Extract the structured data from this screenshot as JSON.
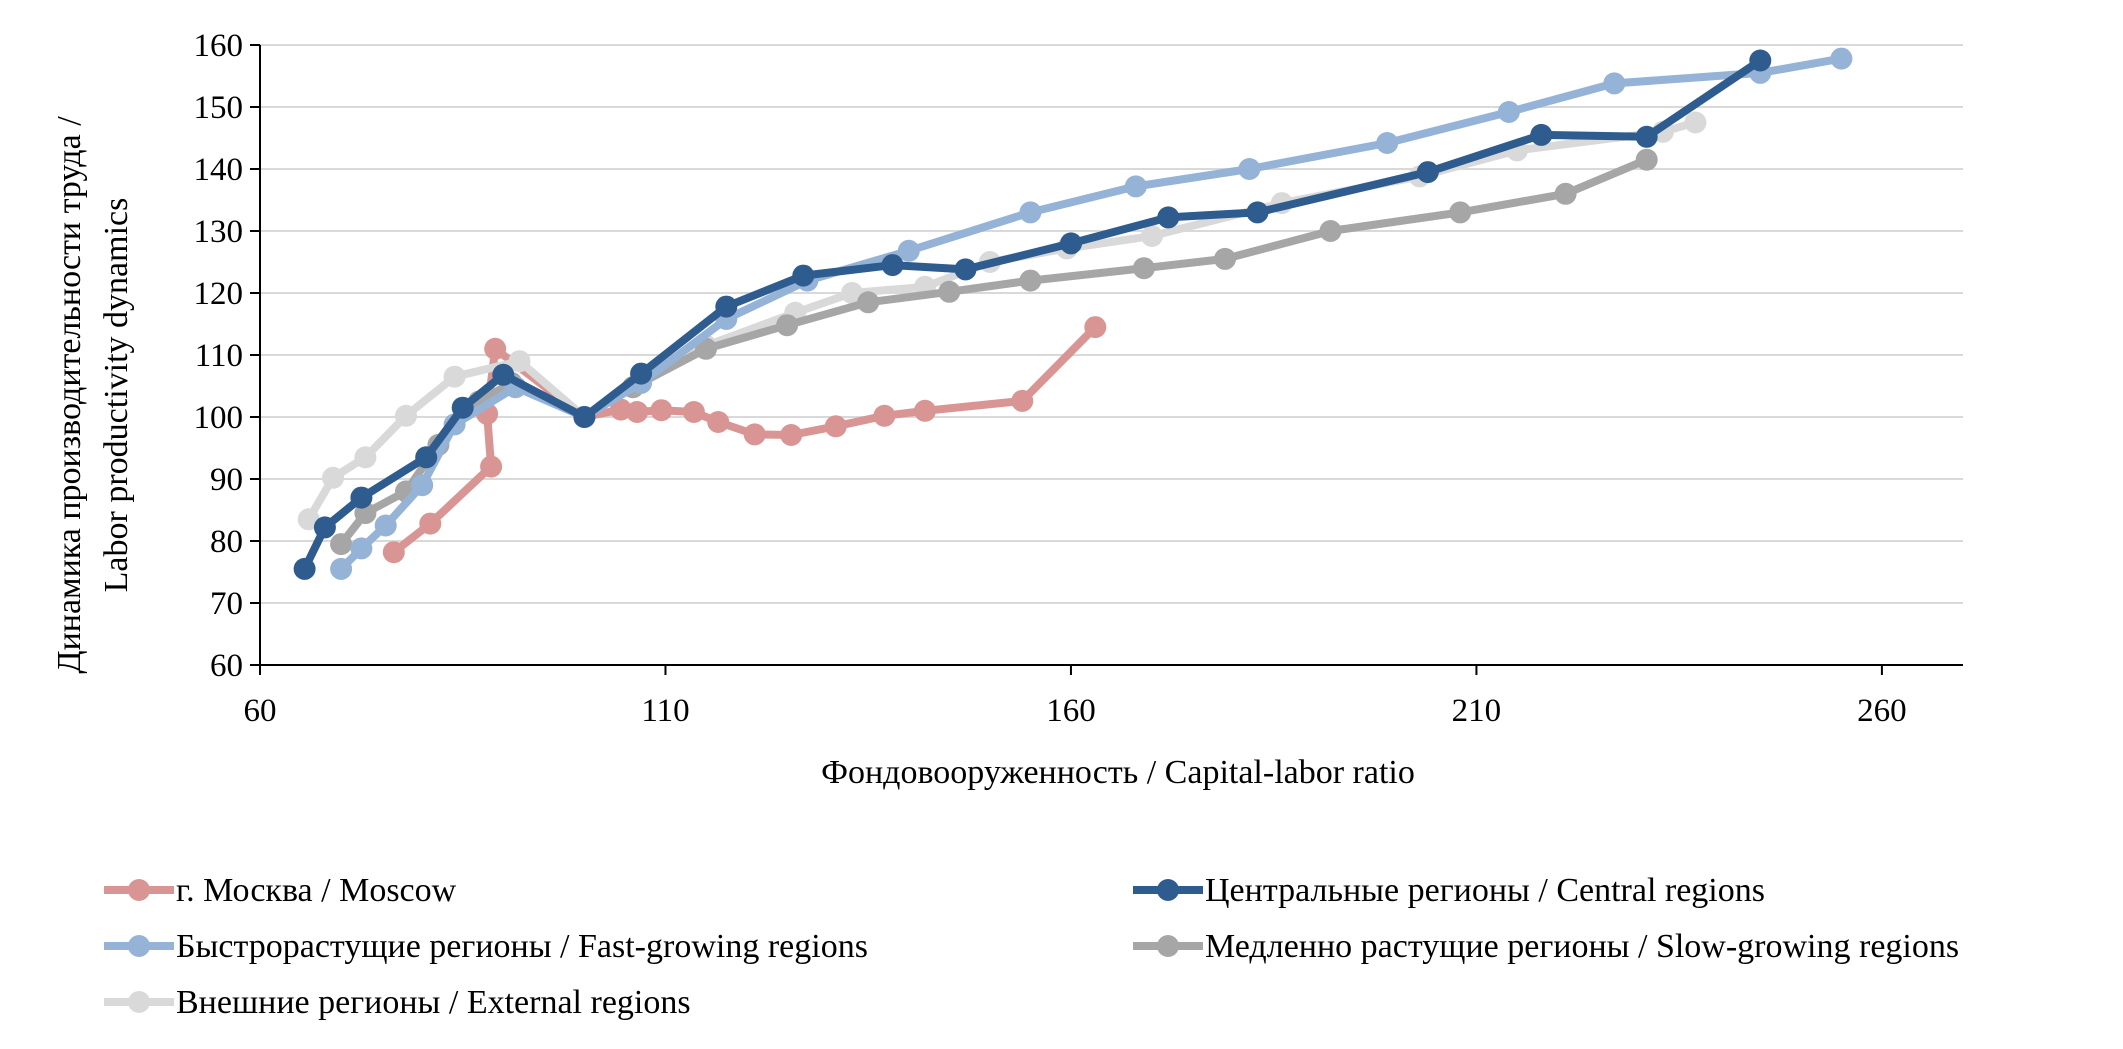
{
  "chart_data": {
    "type": "line",
    "title": "",
    "xlabel": "Фондовооруженность / Capital-labor ratio",
    "ylabel_line1": "Динамика производительности труда /",
    "ylabel_line2": "Labor productivity dynamics",
    "xlim": [
      60,
      270
    ],
    "ylim": [
      60,
      160
    ],
    "xticks": [
      60,
      110,
      160,
      210,
      260
    ],
    "yticks": [
      60,
      70,
      80,
      90,
      100,
      110,
      120,
      130,
      140,
      150,
      160
    ],
    "grid": "horizontal",
    "legend_position": "bottom",
    "series": [
      {
        "name": "г. Москва / Moscow",
        "color": "#D99594",
        "points": [
          [
            76.5,
            78.2
          ],
          [
            81,
            82.8
          ],
          [
            88.5,
            92
          ],
          [
            88,
            100.5
          ],
          [
            89,
            111
          ],
          [
            100,
            100
          ],
          [
            104.5,
            101.2
          ],
          [
            106.5,
            100.8
          ],
          [
            109.5,
            101.1
          ],
          [
            113.5,
            100.8
          ],
          [
            116.5,
            99.2
          ],
          [
            121,
            97.2
          ],
          [
            125.5,
            97.1
          ],
          [
            131,
            98.5
          ],
          [
            137,
            100.2
          ],
          [
            142,
            101
          ],
          [
            154,
            102.6
          ],
          [
            163,
            114.5
          ]
        ]
      },
      {
        "name": "Центральные регионы / Central regions",
        "color": "#2F5C8F",
        "points": [
          [
            65.5,
            75.5
          ],
          [
            68,
            82.2
          ],
          [
            72.5,
            87
          ],
          [
            80.5,
            93.5
          ],
          [
            85,
            101.5
          ],
          [
            90,
            106.8
          ],
          [
            100,
            100
          ],
          [
            107,
            107
          ],
          [
            117.5,
            117.8
          ],
          [
            127,
            122.8
          ],
          [
            138,
            124.5
          ],
          [
            147,
            123.8
          ],
          [
            160,
            128
          ],
          [
            172,
            132.2
          ],
          [
            183,
            133
          ],
          [
            204,
            139.5
          ],
          [
            218,
            145.5
          ],
          [
            231,
            145.2
          ],
          [
            245,
            157.5
          ]
        ]
      },
      {
        "name": "Быстрорастущие регионы / Fast-growing regions",
        "color": "#95B3D7",
        "points": [
          [
            70,
            75.5
          ],
          [
            72.5,
            78.8
          ],
          [
            75.5,
            82.5
          ],
          [
            80,
            89
          ],
          [
            84,
            98.8
          ],
          [
            91.5,
            104.8
          ],
          [
            100,
            100
          ],
          [
            107,
            105.5
          ],
          [
            117.5,
            115.8
          ],
          [
            127.5,
            122
          ],
          [
            140,
            126.8
          ],
          [
            155,
            133
          ],
          [
            168,
            137.2
          ],
          [
            182,
            140
          ],
          [
            199,
            144.2
          ],
          [
            214,
            149.2
          ],
          [
            227,
            153.8
          ],
          [
            245,
            155.5
          ],
          [
            255,
            157.8
          ]
        ]
      },
      {
        "name": "Медленно растущие регионы / Slow-growing regions",
        "color": "#A6A6A6",
        "points": [
          [
            70,
            79.5
          ],
          [
            73,
            84.5
          ],
          [
            78,
            88
          ],
          [
            82,
            95.5
          ],
          [
            87,
            102.5
          ],
          [
            91,
            105.5
          ],
          [
            100,
            100
          ],
          [
            106,
            104.8
          ],
          [
            115,
            111
          ],
          [
            125,
            114.8
          ],
          [
            135,
            118.5
          ],
          [
            145,
            120.2
          ],
          [
            155,
            122
          ],
          [
            169,
            124
          ],
          [
            179,
            125.5
          ],
          [
            192,
            130
          ],
          [
            208,
            133
          ],
          [
            221,
            136
          ],
          [
            231,
            141.5
          ]
        ]
      },
      {
        "name": "Внешние регионы / External regions",
        "color": "#D9D9D9",
        "points": [
          [
            66,
            83.5
          ],
          [
            69,
            90.2
          ],
          [
            73,
            93.5
          ],
          [
            78,
            100.2
          ],
          [
            84,
            106.5
          ],
          [
            92,
            109
          ],
          [
            100,
            100
          ],
          [
            106,
            104.8
          ],
          [
            115,
            111.5
          ],
          [
            126,
            116.8
          ],
          [
            133,
            120
          ],
          [
            142,
            121
          ],
          [
            150,
            125
          ],
          [
            159.5,
            127.2
          ],
          [
            170,
            129.2
          ],
          [
            186,
            134.5
          ],
          [
            203,
            138.8
          ],
          [
            215,
            143
          ],
          [
            233,
            146
          ],
          [
            237,
            147.5
          ]
        ]
      }
    ]
  }
}
